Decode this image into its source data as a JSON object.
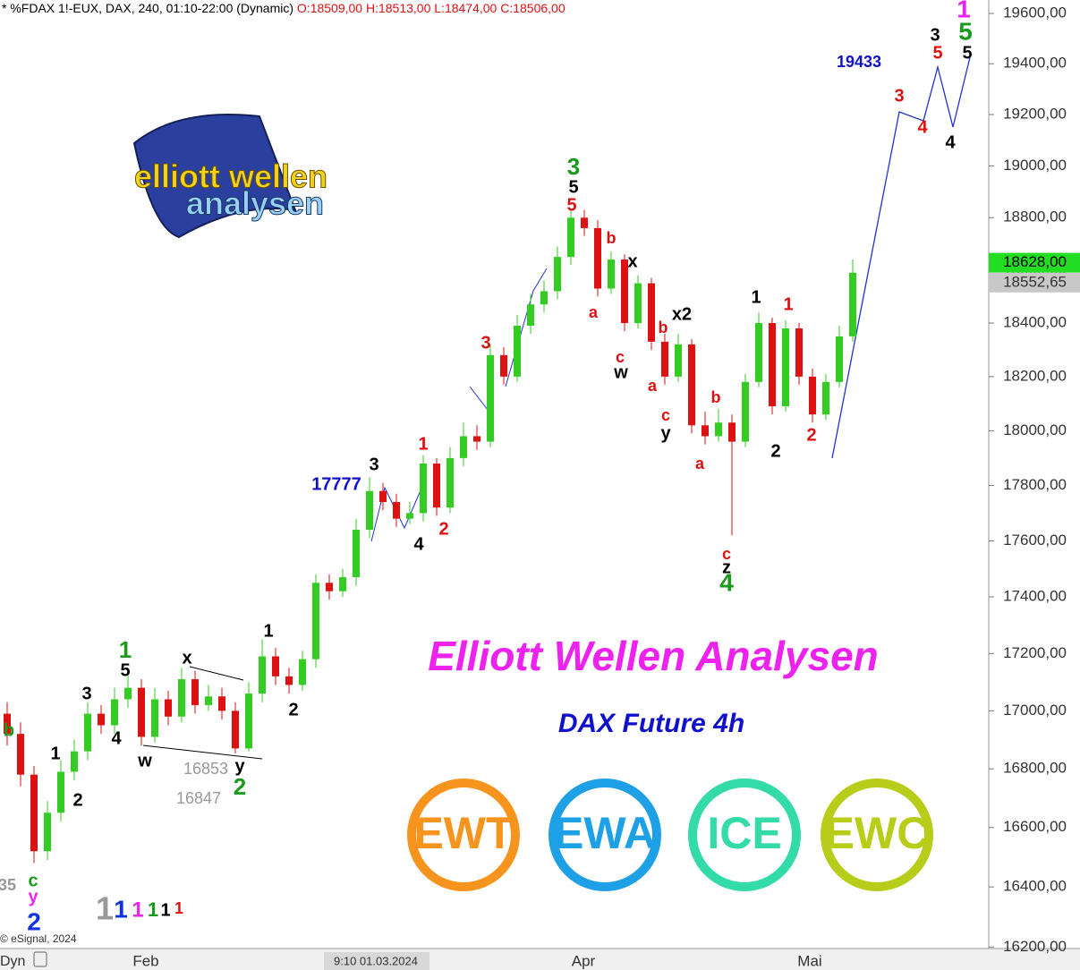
{
  "chart_data": {
    "type": "candlestick",
    "title": "* %FDAX 1!-EUX, DAX, 240, 01:10-22:00 (Dynamic)",
    "ohlc_label": "O:18509,00 H:18513,00 L:18474,00 C:18506,00",
    "headline": "Elliott Wellen Analysen",
    "subtitle": "DAX Future 4h",
    "logo_text": [
      "elliott wellen",
      "analysen"
    ],
    "badges": [
      {
        "text": "EWT",
        "color": "#f7941d"
      },
      {
        "text": "EWA",
        "color": "#1ea0e6"
      },
      {
        "text": "ICE",
        "color": "#33dba8"
      },
      {
        "text": "EWC",
        "color": "#b8cc1a"
      }
    ],
    "copyright": "© eSignal, 2024",
    "mode_label": "Dyn",
    "xticks": [
      {
        "label": "Feb"
      },
      {
        "label": "9:10 01.03.2024"
      },
      {
        "label": "Apr"
      },
      {
        "label": "Mai"
      }
    ],
    "log_scale": true,
    "ylim": [
      16195,
      19654
    ],
    "yticks": [
      {
        "value": 16200,
        "label": "16200,00"
      },
      {
        "value": 16400,
        "label": "16400,00"
      },
      {
        "value": 16600,
        "label": "16600,00"
      },
      {
        "value": 16800,
        "label": "16800,00"
      },
      {
        "value": 17000,
        "label": "17000,00"
      },
      {
        "value": 17200,
        "label": "17200,00"
      },
      {
        "value": 17400,
        "label": "17400,00"
      },
      {
        "value": 17600,
        "label": "17600,00"
      },
      {
        "value": 17800,
        "label": "17800,00"
      },
      {
        "value": 18000,
        "label": "18000,00"
      },
      {
        "value": 18200,
        "label": "18200,00"
      },
      {
        "value": 18400,
        "label": "18400,00"
      },
      {
        "value": 18600,
        "label": "18600,00"
      },
      {
        "value": 18800,
        "label": "18800,00"
      },
      {
        "value": 19000,
        "label": "19000,00"
      },
      {
        "value": 19200,
        "label": "19200,00"
      },
      {
        "value": 19400,
        "label": "19400,00"
      },
      {
        "value": 19600,
        "label": "19600,00"
      }
    ],
    "price_tags": [
      {
        "value": 18628,
        "label": "18628,00",
        "color": "#22dd22"
      },
      {
        "value": 18552.65,
        "label": "18552,65",
        "color": "#c8c8c8"
      }
    ],
    "up_color": "#33cc22",
    "down_color": "#dd1111",
    "open": [
      16990,
      16920,
      16780,
      16520,
      16650,
      16790,
      16860,
      16990,
      16950,
      17040,
      17080,
      16910,
      17040,
      16980,
      17110,
      17020,
      17050,
      17000,
      16870,
      17060,
      17190,
      17120,
      17090,
      17180,
      17450,
      17420,
      17470,
      17640,
      17780,
      17740,
      17680,
      17700,
      17880,
      17720,
      17900,
      17980,
      17960,
      18280,
      18200,
      18390,
      18470,
      18520,
      18650,
      18800,
      18760,
      18530,
      18640,
      18400,
      18550,
      18330,
      18200,
      18320,
      18020,
      17980,
      18030,
      17960,
      18180,
      18400,
      18090,
      18380,
      18200,
      18060,
      18180,
      18350
    ],
    "high": [
      17030,
      16960,
      16810,
      16690,
      16830,
      16900,
      17030,
      17020,
      17080,
      17130,
      17110,
      17080,
      17070,
      17150,
      17140,
      17090,
      17080,
      17030,
      17100,
      17250,
      17220,
      17150,
      17210,
      17480,
      17480,
      17500,
      17680,
      17830,
      17810,
      17770,
      17740,
      17910,
      17900,
      17940,
      18030,
      18020,
      18320,
      18310,
      18430,
      18510,
      18560,
      18690,
      18830,
      18830,
      18790,
      18670,
      18660,
      18580,
      18570,
      18360,
      18360,
      18340,
      18070,
      18080,
      18060,
      18210,
      18440,
      18420,
      18410,
      18400,
      18230,
      18210,
      18390,
      18640
    ],
    "low": [
      16880,
      16740,
      16480,
      16490,
      16620,
      16760,
      16830,
      16920,
      16920,
      17010,
      16880,
      16890,
      16950,
      16960,
      16990,
      17000,
      16970,
      16853,
      16860,
      17030,
      17090,
      17060,
      17070,
      17150,
      17390,
      17400,
      17440,
      17610,
      17710,
      17650,
      17660,
      17670,
      17690,
      17700,
      17870,
      17930,
      17940,
      18170,
      18180,
      18360,
      18440,
      18490,
      18620,
      18730,
      18500,
      18510,
      18370,
      18380,
      18300,
      18170,
      18180,
      17990,
      17950,
      17960,
      17620,
      17940,
      18160,
      18060,
      18070,
      18170,
      18030,
      18040,
      18160,
      18330
    ],
    "close": [
      16920,
      16780,
      16520,
      16650,
      16790,
      16860,
      16990,
      16950,
      17040,
      17080,
      16910,
      17040,
      16980,
      17110,
      17020,
      17050,
      17000,
      16870,
      17060,
      17190,
      17120,
      17090,
      17180,
      17450,
      17420,
      17470,
      17640,
      17780,
      17740,
      17680,
      17700,
      17880,
      17720,
      17900,
      17980,
      17960,
      18280,
      18200,
      18390,
      18470,
      18520,
      18650,
      18800,
      18760,
      18530,
      18640,
      18400,
      18550,
      18330,
      18200,
      18320,
      18020,
      17980,
      18030,
      17960,
      18180,
      18400,
      18090,
      18380,
      18200,
      18060,
      18180,
      18350,
      18590
    ],
    "annotations": [
      {
        "text": "b",
        "color": "#1a9a1a"
      },
      {
        "text": "c",
        "color": "#1a9a1a"
      },
      {
        "text": "y",
        "color": "#ee22ee"
      },
      {
        "text": "2",
        "color": "#1133dd"
      },
      {
        "text": "1",
        "color": "#000"
      },
      {
        "text": "2",
        "color": "#000"
      },
      {
        "text": "3",
        "color": "#000"
      },
      {
        "text": "4",
        "color": "#000"
      },
      {
        "text": "1",
        "color": "#1a9a1a"
      },
      {
        "text": "5",
        "color": "#000"
      },
      {
        "text": "x",
        "color": "#000"
      },
      {
        "text": "w",
        "color": "#000"
      },
      {
        "text": "16853",
        "color": "#999"
      },
      {
        "text": "y",
        "color": "#000"
      },
      {
        "text": "16847",
        "color": "#999"
      },
      {
        "text": "2",
        "color": "#1a9a1a"
      },
      {
        "text": "1",
        "color": "#000"
      },
      {
        "text": "2",
        "color": "#000"
      },
      {
        "text": "3",
        "color": "#000"
      },
      {
        "text": "17777",
        "color": "#1111cc"
      },
      {
        "text": "4",
        "color": "#000"
      },
      {
        "text": "1",
        "color": "#dd1111"
      },
      {
        "text": "2",
        "color": "#dd1111"
      },
      {
        "text": "3",
        "color": "#dd1111"
      },
      {
        "text": "3",
        "color": "#1a9a1a"
      },
      {
        "text": "5",
        "color": "#000"
      },
      {
        "text": "5",
        "color": "#dd1111"
      },
      {
        "text": "b",
        "color": "#dd1111"
      },
      {
        "text": "x",
        "color": "#000"
      },
      {
        "text": "a",
        "color": "#dd1111"
      },
      {
        "text": "c",
        "color": "#dd1111"
      },
      {
        "text": "w",
        "color": "#000"
      },
      {
        "text": "x2",
        "color": "#000"
      },
      {
        "text": "b",
        "color": "#dd1111"
      },
      {
        "text": "a",
        "color": "#dd1111"
      },
      {
        "text": "c",
        "color": "#dd1111"
      },
      {
        "text": "y",
        "color": "#000"
      },
      {
        "text": "b",
        "color": "#dd1111"
      },
      {
        "text": "a",
        "color": "#dd1111"
      },
      {
        "text": "c",
        "color": "#dd1111"
      },
      {
        "text": "z",
        "color": "#000"
      },
      {
        "text": "4",
        "color": "#1a9a1a"
      },
      {
        "text": "1",
        "color": "#000"
      },
      {
        "text": "1",
        "color": "#dd1111"
      },
      {
        "text": "2",
        "color": "#000"
      },
      {
        "text": "2",
        "color": "#dd1111"
      },
      {
        "text": "19433",
        "color": "#1111cc"
      },
      {
        "text": "3",
        "color": "#dd1111"
      },
      {
        "text": "4",
        "color": "#dd1111"
      },
      {
        "text": "4",
        "color": "#000"
      },
      {
        "text": "3",
        "color": "#000"
      },
      {
        "text": "5",
        "color": "#dd1111"
      },
      {
        "text": "5",
        "color": "#000"
      },
      {
        "text": "5",
        "color": "#1a9a1a"
      },
      {
        "text": "1",
        "color": "#ee22ee"
      },
      {
        "text": "35",
        "color": "#999"
      },
      {
        "text": "1",
        "color": "#999"
      },
      {
        "text": "1",
        "color": "#1133dd"
      },
      {
        "text": "1",
        "color": "#ee22ee"
      },
      {
        "text": "1",
        "color": "#1a9a1a"
      },
      {
        "text": "1",
        "color": "#000"
      },
      {
        "text": "1",
        "color": "#dd1111"
      }
    ]
  }
}
